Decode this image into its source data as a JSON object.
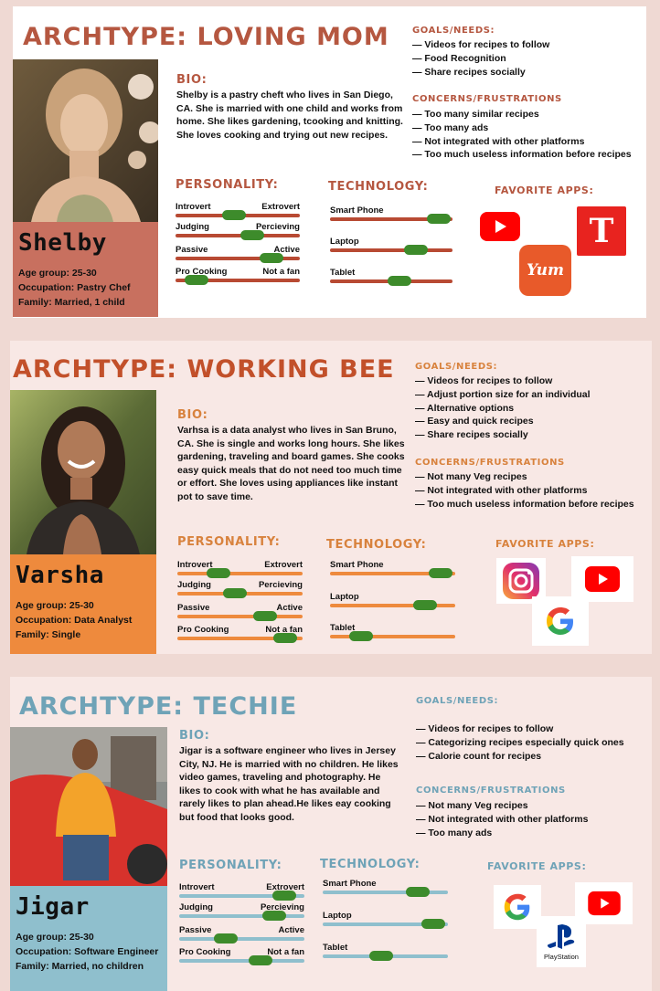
{
  "colors": {
    "page_bg": "#efd9d3",
    "knob": "#3d8b2b",
    "youtube": "#ff0000",
    "instagram": "#c13584",
    "yum": "#e85a2a"
  },
  "personas": [
    {
      "title": "ARCHTYPE: LOVING MOM",
      "accent": "#b55740",
      "name": "Shelby",
      "age": "Age group: 25-30",
      "occupation": "Occupation: Pastry Chef",
      "family": "Family: Married, 1 child",
      "bio_title": "BIO:",
      "bio": "Shelby is a pastry cheft who lives in San Diego, CA. She is married with one child and works from home. She likes gardening, tcooking and knitting. She loves cooking and trying out new recipes.",
      "goals_title": "GOALS/NEEDS:",
      "goals": [
        "— Videos for recipes to follow",
        "— Food Recognition",
        "— Share recipes socially"
      ],
      "concerns_title": "CONCERNS/FRUSTRATIONS",
      "concerns": [
        "— Too many similar recipes",
        "— Too many ads",
        "— Not integrated with other platforms",
        "— Too much useless information before recipes"
      ],
      "personality_title": "PERSONALITY:",
      "personality": [
        {
          "left": "Introvert",
          "right": "Extrovert",
          "value": 0.47
        },
        {
          "left": "Judging",
          "right": "Percieving",
          "value": 0.62
        },
        {
          "left": "Passive",
          "right": "Active",
          "value": 0.77
        },
        {
          "left": "Pro Cooking",
          "right": "Not a fan",
          "value": 0.17
        }
      ],
      "technology_title": "TECHNOLOGY:",
      "technology": [
        {
          "label": "Smart Phone",
          "value": 0.89
        },
        {
          "label": "Laptop",
          "value": 0.7
        },
        {
          "label": "Tablet",
          "value": 0.57
        }
      ],
      "apps_title": "FAVORITE  APPS:",
      "apps": [
        "youtube-icon",
        "nyt-icon",
        "yum-icon"
      ],
      "yum_text": "Yum"
    },
    {
      "title": "ARCHTYPE: WORKING BEE",
      "accent": "#c2502a",
      "name": "Varsha",
      "age": "Age group: 25-30",
      "occupation": "Occupation: Data Analyst",
      "family": "Family: Single",
      "bio_title": "BIO:",
      "bio": "Varhsa is a data analyst who lives in San Bruno, CA. She is single and works long hours. She likes gardening, traveling and board games. She cooks easy quick meals that do not need too much time or effort. She loves using appliances like instant pot to save time.",
      "goals_title": "GOALS/NEEDS:",
      "goals": [
        "— Videos for recipes to follow",
        "— Adjust portion size for an individual",
        "— Alternative options",
        "— Easy and quick recipes",
        "— Share recipes socially"
      ],
      "concerns_title": "CONCERNS/FRUSTRATIONS",
      "concerns": [
        "— Not many Veg recipes",
        "— Not integrated with other platforms",
        "— Too much useless information before recipes"
      ],
      "personality_title": "PERSONALITY:",
      "personality": [
        {
          "left": "Introvert",
          "right": "Extrovert",
          "value": 0.33
        },
        {
          "left": "Judging",
          "right": "Percieving",
          "value": 0.46
        },
        {
          "left": "Passive",
          "right": "Active",
          "value": 0.7
        },
        {
          "left": "Pro Cooking",
          "right": "Not a fan",
          "value": 0.86
        }
      ],
      "technology_title": "TECHNOLOGY:",
      "technology": [
        {
          "label": "Smart Phone",
          "value": 0.88
        },
        {
          "label": "Laptop",
          "value": 0.76
        },
        {
          "label": "Tablet",
          "value": 0.25
        }
      ],
      "apps_title": "FAVORITE  APPS:",
      "apps": [
        "instagram-icon",
        "youtube-icon",
        "google-icon"
      ]
    },
    {
      "title": "ARCHTYPE: TECHIE",
      "accent": "#6fa3b7",
      "name": "Jigar",
      "age": "Age group: 25-30",
      "occupation": "Occupation: Software Engineer",
      "family": "Family: Married, no children",
      "bio_title": "BIO:",
      "bio": "Jigar is a software engineer who lives in Jersey City, NJ. He is married with no children. He likes video games, traveling and photography. He likes to cook with what he has available and rarely likes to plan ahead.He likes eay cooking but food that looks good.",
      "goals_title": "GOALS/NEEDS:",
      "goals": [
        "— Videos for recipes to follow",
        "— Categorizing recipes especially quick ones",
        "— Calorie count for recipes"
      ],
      "concerns_title": "CONCERNS/FRUSTRATIONS",
      "concerns": [
        "— Not many Veg recipes",
        "— Not integrated with other platforms",
        "— Too many ads"
      ],
      "personality_title": "PERSONALITY:",
      "personality": [
        {
          "left": "Introvert",
          "right": "Extrovert",
          "value": 0.84
        },
        {
          "left": "Judging",
          "right": "Percieving",
          "value": 0.76
        },
        {
          "left": "Passive",
          "right": "Active",
          "value": 0.37
        },
        {
          "left": "Pro Cooking",
          "right": "Not a fan",
          "value": 0.65
        }
      ],
      "technology_title": "TECHNOLOGY:",
      "technology": [
        {
          "label": "Smart Phone",
          "value": 0.76
        },
        {
          "label": "Laptop",
          "value": 0.88
        },
        {
          "label": "Tablet",
          "value": 0.47
        }
      ],
      "apps_title": "FAVORITE  APPS:",
      "apps": [
        "google-icon",
        "youtube-icon",
        "playstation-icon"
      ],
      "playstation_text": "PlayStation"
    }
  ]
}
